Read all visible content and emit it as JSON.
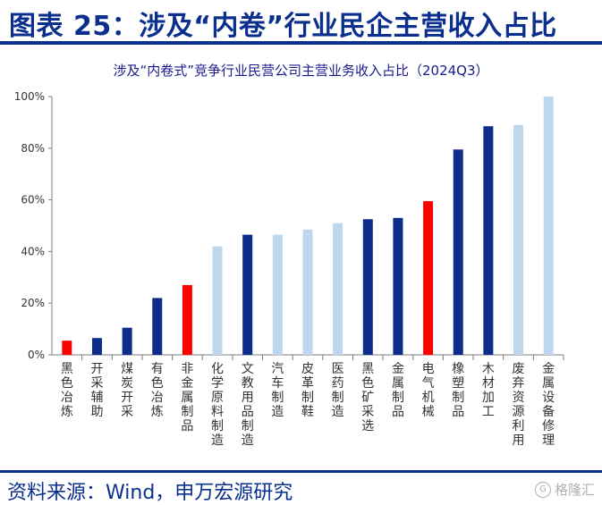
{
  "header": {
    "title": "图表 25：涉及“内卷”行业民企主营收入占比"
  },
  "chart_data": {
    "type": "bar",
    "title": "涉及“内卷式”竞争行业民营公司主营业务收入占比（2024Q3）",
    "xlabel": "",
    "ylabel": "",
    "ylim": [
      0,
      100
    ],
    "y_ticks": [
      "0%",
      "20%",
      "40%",
      "60%",
      "80%",
      "100%"
    ],
    "y_tick_values": [
      0,
      20,
      40,
      60,
      80,
      100
    ],
    "categories": [
      "黑色冶炼",
      "开采辅助",
      "煤炭开采",
      "有色冶炼",
      "非金属制品",
      "化学原料制造",
      "文教用品制造",
      "汽车制造",
      "皮革制鞋",
      "医药制造",
      "黑色矿采选",
      "金属制品",
      "电气机械",
      "橡塑制品",
      "木材加工",
      "废弃资源利用",
      "金属设备修理"
    ],
    "values": [
      5.5,
      6.5,
      10.5,
      22,
      27,
      42,
      46.5,
      46.5,
      48.5,
      51,
      52.5,
      53,
      59.5,
      79.5,
      88.5,
      89,
      100
    ],
    "bar_colors": [
      "#ff0000",
      "#0d2d8a",
      "#0d2d8a",
      "#0d2d8a",
      "#ff0000",
      "#bdd7ee",
      "#0d2d8a",
      "#bdd7ee",
      "#bdd7ee",
      "#bdd7ee",
      "#0d2d8a",
      "#0d2d8a",
      "#ff0000",
      "#0d2d8a",
      "#0d2d8a",
      "#bdd7ee",
      "#bdd7ee"
    ],
    "grid": false,
    "legend": "none"
  },
  "footer": {
    "source": "资料来源：Wind，申万宏源研究",
    "watermark": "格隆汇"
  },
  "colors": {
    "accent": "#0a2f8c",
    "axis": "#7f7f7f",
    "label": "#333333"
  }
}
